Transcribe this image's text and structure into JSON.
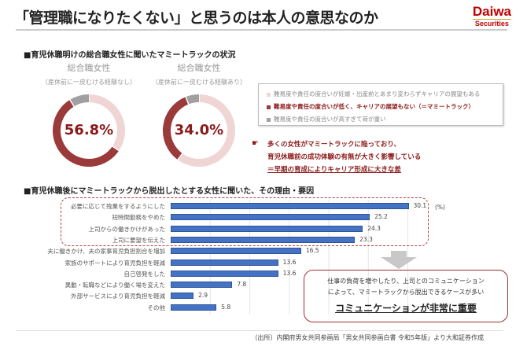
{
  "title": "「管理職になりたくない」と思うのは本人の意思なのか",
  "logo": {
    "line1": "Daiwa",
    "line2": "Securities"
  },
  "section1": {
    "heading": "■育児休職明けの総合職女性に聞いたマミートラックの状況",
    "donuts": [
      {
        "label": "総合職女性",
        "sublabel": "（産休前に一皮むける経験なし）",
        "center_text": "56.8%",
        "segments": [
          34.4,
          56.8,
          8.8
        ]
      },
      {
        "label": "総合職女性",
        "sublabel": "（産休前に一皮むける経験あり）",
        "center_text": "34.0%",
        "segments": [
          60.0,
          34.0,
          6.0
        ]
      }
    ],
    "colors": {
      "pink": "#f0d5d5",
      "red": "#9b3a3a",
      "gray": "#a0a0a0"
    },
    "legend": [
      {
        "text": "難易度や責任の度合いが妊娠・出産前とあまり変わらずキャリアの展望もある",
        "color": "#f0d5d5"
      },
      {
        "text": "難易度や責任の度合いが低く、キャリアの展望もない（＝マミートラック）",
        "color": "#9b3a3a"
      },
      {
        "text": "難易度や責任の度合いが高すぎて荷が重い",
        "color": "#a0a0a0"
      }
    ],
    "callout": [
      "多くの女性がマミートラックに陥っており、",
      "育児休職前の成功体験の有無が大きく影響している",
      "＝早期の育成によりキャリア形成に大きな差"
    ]
  },
  "section2": {
    "heading": "■育児休職後にマミートラックから脱出したとする女性に聞いた、その理由・要因",
    "unit": "(%)",
    "bar_color": "#4472c4",
    "bars": [
      {
        "label": "必要に応じて残業をするようにした",
        "value": "30.1"
      },
      {
        "label": "短時間勤務をやめた",
        "value": "25.2"
      },
      {
        "label": "上司からの働きかけがあった",
        "value": "24.3"
      },
      {
        "label": "上司に要望を伝えた",
        "value": "23.3"
      },
      {
        "label": "夫に働きかけ、夫の家事育児負担割合を増加",
        "value": "16.5"
      },
      {
        "label": "家族のサポートにより育児負担を軽減",
        "value": "13.6"
      },
      {
        "label": "自己啓発をした",
        "value": "13.6"
      },
      {
        "label": "異動・転職などにより働く場を変えた",
        "value": "7.8"
      },
      {
        "label": "外部サービスにより育児負担を軽減",
        "value": "2.9"
      },
      {
        "label": "その他",
        "value": "5.8"
      }
    ],
    "box": {
      "line1": "仕事の負荷を増やしたり、上司とのコミュニケーション",
      "line2": "によって、マミートラックから脱出できるケースが多い",
      "emphasis": "コミュニケーションが非常に重要"
    }
  },
  "source": "（出所）内閣府男女共同参画局「男女共同参画白書 令和5年版」より大和証券作成"
}
